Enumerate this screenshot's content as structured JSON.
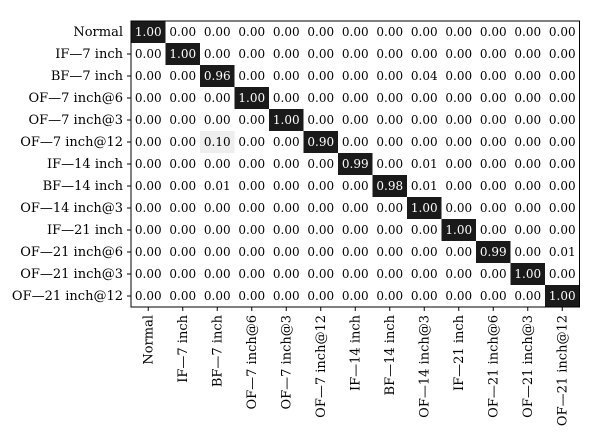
{
  "chart_data": {
    "type": "heatmap",
    "title": "",
    "row_labels": [
      "Normal",
      "IF—7 inch",
      "BF—7 inch",
      "OF—7 inch@6",
      "OF—7 inch@3",
      "OF—7 inch@12",
      "IF—14 inch",
      "BF—14 inch",
      "OF—14 inch@3",
      "IF—21 inch",
      "OF—21 inch@6",
      "OF—21 inch@3",
      "OF—21 inch@12"
    ],
    "col_labels": [
      "Normal",
      "IF—7 inch",
      "BF—7 inch",
      "OF—7 inch@6",
      "OF—7 inch@3",
      "OF—7 inch@12",
      "IF—14 inch",
      "BF—14 inch",
      "OF—14 inch@3",
      "IF—21 inch",
      "OF—21 inch@6",
      "OF—21 inch@3",
      "OF—21 inch@12"
    ],
    "value_labels": [
      [
        "1.00",
        "0.00",
        "0.00",
        "0.00",
        "0.00",
        "0.00",
        "0.00",
        "0.00",
        "0.00",
        "0.00",
        "0.00",
        "0.00",
        "0.00"
      ],
      [
        "0.00",
        "1.00",
        "0.00",
        "0.00",
        "0.00",
        "0.00",
        "0.00",
        "0.00",
        "0.00",
        "0.00",
        "0.00",
        "0.00",
        "0.00"
      ],
      [
        "0.00",
        "0.00",
        "0.96",
        "0.00",
        "0.00",
        "0.00",
        "0.00",
        "0.00",
        "0.04",
        "0.00",
        "0.00",
        "0.00",
        "0.00"
      ],
      [
        "0.00",
        "0.00",
        "0.00",
        "1.00",
        "0.00",
        "0.00",
        "0.00",
        "0.00",
        "0.00",
        "0.00",
        "0.00",
        "0.00",
        "0.00"
      ],
      [
        "0.00",
        "0.00",
        "0.00",
        "0.00",
        "1.00",
        "0.00",
        "0.00",
        "0.00",
        "0.00",
        "0.00",
        "0.00",
        "0.00",
        "0.00"
      ],
      [
        "0.00",
        "0.00",
        "0.10",
        "0.00",
        "0.00",
        "0.90",
        "0.00",
        "0.00",
        "0.00",
        "0.00",
        "0.00",
        "0.00",
        "0.00"
      ],
      [
        "0.00",
        "0.00",
        "0.00",
        "0.00",
        "0.00",
        "0.00",
        "0.99",
        "0.00",
        "0.01",
        "0.00",
        "0.00",
        "0.00",
        "0.00"
      ],
      [
        "0.00",
        "0.00",
        "0.01",
        "0.00",
        "0.00",
        "0.00",
        "0.00",
        "0.98",
        "0.01",
        "0.00",
        "0.00",
        "0.00",
        "0.00"
      ],
      [
        "0.00",
        "0.00",
        "0.00",
        "0.00",
        "0.00",
        "0.00",
        "0.00",
        "0.00",
        "1.00",
        "0.00",
        "0.00",
        "0.00",
        "0.00"
      ],
      [
        "0.00",
        "0.00",
        "0.00",
        "0.00",
        "0.00",
        "0.00",
        "0.00",
        "0.00",
        "0.00",
        "1.00",
        "0.00",
        "0.00",
        "0.00"
      ],
      [
        "0.00",
        "0.00",
        "0.00",
        "0.00",
        "0.00",
        "0.00",
        "0.00",
        "0.00",
        "0.00",
        "0.00",
        "0.99",
        "0.00",
        "0.01"
      ],
      [
        "0.00",
        "0.00",
        "0.00",
        "0.00",
        "0.00",
        "0.00",
        "0.00",
        "0.00",
        "0.00",
        "0.00",
        "0.00",
        "1.00",
        "0.00"
      ],
      [
        "0.00",
        "0.00",
        "0.00",
        "0.00",
        "0.00",
        "0.00",
        "0.00",
        "0.00",
        "0.00",
        "0.00",
        "0.00",
        "0.00",
        "1.00"
      ]
    ],
    "colors": {
      "high": "#1a1a1a",
      "mid": "#eeeeee",
      "low": "#ffffff",
      "text_dark": "#000000",
      "text_light": "#ffffff"
    },
    "legend": "none",
    "grid": false
  }
}
